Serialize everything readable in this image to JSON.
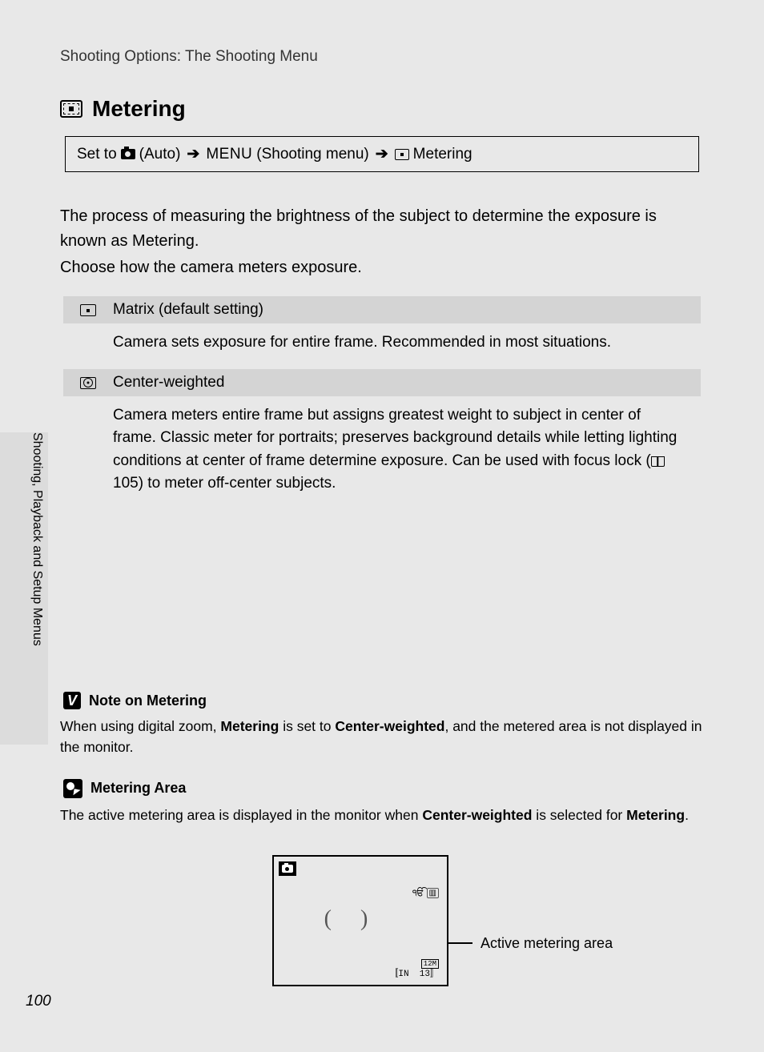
{
  "breadcrumb": "Shooting Options: The Shooting Menu",
  "heading": "Metering",
  "navPath": {
    "prefix": "Set to",
    "auto": "(Auto)",
    "menu": "MENU",
    "menuSuffix": "(Shooting menu)",
    "metering": "Metering"
  },
  "intro1": "The process of measuring the brightness of the subject to determine the exposure is known as Metering.",
  "intro2": "Choose how the camera meters exposure.",
  "options": [
    {
      "label": "Matrix (default setting)",
      "desc": "Camera sets exposure for entire frame. Recommended in most situations."
    },
    {
      "label": "Center-weighted",
      "descPart1": "Camera meters entire frame but assigns greatest weight to subject in center of frame. Classic meter for portraits; preserves background details while letting lighting conditions at center of frame determine exposure. Can be used with focus lock (",
      "pageRef": "105",
      "descPart2": ") to meter off-center subjects."
    }
  ],
  "sideTab": "Shooting, Playback and Setup Menus",
  "noteTitle": "Note on Metering",
  "noteBody": {
    "p1": "When using digital zoom, ",
    "b1": "Metering",
    "p2": " is set to ",
    "b2": "Center-weighted",
    "p3": ", and the metered area is not displayed in the monitor."
  },
  "tipTitle": "Metering Area",
  "tipBody": {
    "p1": "The active metering area is displayed in the monitor when ",
    "b1": "Center-weighted",
    "p2": " is selected for ",
    "b2": "Metering",
    "p3": "."
  },
  "monitor": {
    "size": "12M",
    "in": "IN",
    "count": "13"
  },
  "callout": "Active metering area",
  "pageNumber": "100",
  "colors": {
    "pageBg": "#e8e8e8",
    "tableHeaderBg": "#d4d4d4",
    "tabBg": "#dcdcdc",
    "text": "#000000"
  }
}
